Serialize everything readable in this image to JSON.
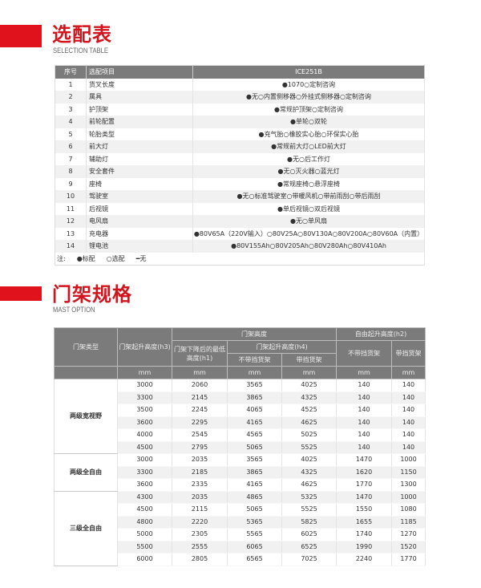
{
  "section1": {
    "title": "选配表",
    "subtitle": "SELECTION TABLE"
  },
  "selection": {
    "headers": [
      "序号",
      "选配项目",
      "ICE251B"
    ],
    "rows": [
      [
        "1",
        "货叉长度",
        "●1070○定制咨询"
      ],
      [
        "2",
        "属具",
        "●无○内置侧移器○外挂式侧移器○定制咨询"
      ],
      [
        "3",
        "护顶架",
        "●常规护顶架○定制咨询"
      ],
      [
        "4",
        "前轮配置",
        "●单轮○双轮"
      ],
      [
        "5",
        "轮胎类型",
        "●充气胎○橡胶实心胎○环保实心胎"
      ],
      [
        "6",
        "前大灯",
        "●常规前大灯○LED前大灯"
      ],
      [
        "7",
        "辅助灯",
        "●无○后工作灯"
      ],
      [
        "8",
        "安全套件",
        "●无○灭火器○蓝光灯"
      ],
      [
        "9",
        "座椅",
        "●常规座椅○悬浮座椅"
      ],
      [
        "10",
        "驾驶室",
        "●无○标准驾驶室○带暖风机○带前雨刮○带后雨刮"
      ],
      [
        "11",
        "后视镜",
        "●单后视镜○双后视镜"
      ],
      [
        "12",
        "电风扇",
        "●无○单风扇"
      ],
      [
        "13",
        "充电器",
        "●80V65A（220V输入）○80V25A○80V130A○80V200A○80V60A（内置）"
      ],
      [
        "14",
        "锂电池",
        "●80V155Ah○80V205Ah○80V280Ah○80V410Ah"
      ]
    ],
    "note": {
      "label": "注:",
      "standard": "●标配",
      "optional": "○选配",
      "none": "━无"
    }
  },
  "section2": {
    "title": "门架规格",
    "subtitle": "MAST OPTION"
  },
  "mast": {
    "headers": {
      "type": "门架类型",
      "h3": "门架起升高度(h3)",
      "mast_height": "门架高度",
      "h1": "门架下降后的最低高度(h1)",
      "h4": "门架起升高度(h4)",
      "h2": "自由起升高度(h2)",
      "no_guard": "不带挡货架",
      "with_guard": "带挡货架",
      "unit": "mm"
    },
    "groups": [
      {
        "name": "两级宽视野",
        "rows": [
          [
            "3000",
            "2060",
            "3565",
            "4025",
            "140",
            "140"
          ],
          [
            "3300",
            "2145",
            "3865",
            "4325",
            "140",
            "140"
          ],
          [
            "3500",
            "2245",
            "4065",
            "4525",
            "140",
            "140"
          ],
          [
            "3600",
            "2295",
            "4165",
            "4625",
            "140",
            "140"
          ],
          [
            "4000",
            "2545",
            "4565",
            "5025",
            "140",
            "140"
          ],
          [
            "4500",
            "2795",
            "5065",
            "5525",
            "140",
            "140"
          ]
        ]
      },
      {
        "name": "两级全自由",
        "rows": [
          [
            "3000",
            "2035",
            "3565",
            "4025",
            "1470",
            "1000"
          ],
          [
            "3300",
            "2185",
            "3865",
            "4325",
            "1620",
            "1150"
          ],
          [
            "3600",
            "2335",
            "4165",
            "4625",
            "1770",
            "1300"
          ]
        ]
      },
      {
        "name": "三级全自由",
        "rows": [
          [
            "4300",
            "2035",
            "4865",
            "5325",
            "1470",
            "1000"
          ],
          [
            "4500",
            "2115",
            "5065",
            "5525",
            "1550",
            "1080"
          ],
          [
            "4800",
            "2220",
            "5365",
            "5825",
            "1655",
            "1185"
          ],
          [
            "5000",
            "2305",
            "5565",
            "6025",
            "1740",
            "1270"
          ],
          [
            "5500",
            "2555",
            "6065",
            "6525",
            "1990",
            "1520"
          ],
          [
            "6000",
            "2805",
            "6565",
            "7025",
            "2240",
            "1770"
          ]
        ]
      }
    ]
  },
  "colors": {
    "accent": "#e0121c",
    "header": "#7b7b7b",
    "row_alt": "#f1f1f1"
  }
}
